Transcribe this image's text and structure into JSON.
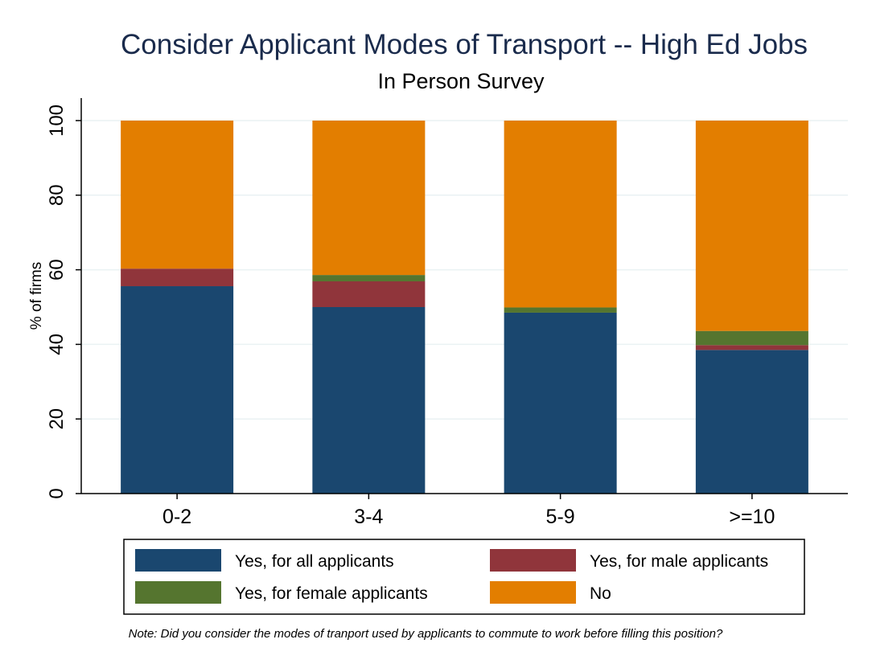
{
  "chart_data": {
    "type": "bar",
    "stacked": true,
    "title": "Consider Applicant Modes of Transport -- High Ed Jobs",
    "subtitle": "In Person Survey",
    "xlabel": "",
    "ylabel": "% of firms",
    "ylim": [
      0,
      100
    ],
    "yticks": [
      "0",
      "20",
      "40",
      "60",
      "80",
      "100"
    ],
    "grid": true,
    "legend_position": "bottom",
    "categories": [
      "0-2",
      "3-4",
      "5-9",
      ">=10"
    ],
    "series": [
      {
        "name": "Yes, for all applicants",
        "color": "#1a476f",
        "values": [
          55.6,
          50.0,
          48.5,
          38.5
        ]
      },
      {
        "name": "Yes, for male applicants",
        "color": "#90353b",
        "values": [
          4.7,
          6.9,
          0,
          1.3
        ]
      },
      {
        "name": "Yes, for female applicants",
        "color": "#55752f",
        "values": [
          0,
          1.7,
          1.4,
          3.8
        ]
      },
      {
        "name": "No",
        "color": "#e37e00",
        "values": [
          39.7,
          41.4,
          50.1,
          56.4
        ]
      }
    ],
    "note": "Note: Did you consider the modes of tranport used by applicants to commute to work before filling this position?"
  },
  "colors": {
    "grid": "#eaf2f3",
    "axis": "#000000",
    "title": "#1a2b4c"
  }
}
